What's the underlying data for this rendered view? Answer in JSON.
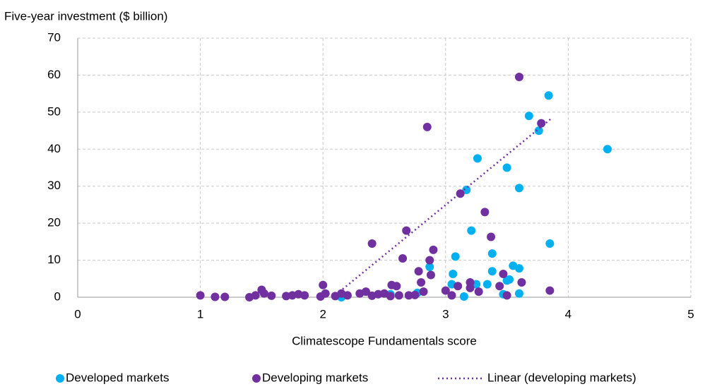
{
  "chart_data": {
    "type": "scatter",
    "y_label": "Five-year investment ($ billion)",
    "x_label": "Climatescope Fundamentals score",
    "xlim": [
      0,
      5
    ],
    "xticks": [
      0,
      1,
      2,
      3,
      4,
      5
    ],
    "ylim": [
      0,
      70
    ],
    "yticks": [
      0,
      10,
      20,
      30,
      40,
      50,
      60,
      70
    ],
    "grid": true,
    "legend": "bottom",
    "series": [
      {
        "name": "Developed markets",
        "color": "#00b0f0",
        "x": [
          3.84,
          3.68,
          3.76,
          4.32,
          3.26,
          3.5,
          3.6,
          3.17,
          3.21,
          3.85,
          3.38,
          3.08,
          3.06,
          3.38,
          3.55,
          3.6,
          2.87,
          3.05,
          3.25,
          3.34,
          3.5,
          3.52,
          3.15,
          3.47,
          3.6,
          2.15,
          2.77,
          2.55
        ],
        "values": [
          54.5,
          49,
          45,
          40,
          37.5,
          35,
          29.5,
          29,
          18,
          14.5,
          11.8,
          11,
          6.3,
          7,
          8.5,
          7.8,
          8.2,
          3.5,
          3.5,
          3.5,
          4.5,
          4.8,
          0.2,
          0.8,
          1,
          0,
          1.2,
          0.8
        ]
      },
      {
        "name": "Developing markets",
        "color": "#7030a0",
        "x": [
          3.6,
          3.78,
          2.85,
          3.12,
          3.32,
          2.68,
          3.37,
          2.4,
          2.9,
          2.65,
          2.87,
          2.78,
          2.88,
          3.47,
          2.8,
          3.2,
          3.62,
          3.44,
          3.1,
          3.27,
          3.2,
          3.0,
          3.05,
          3.5,
          3.85,
          2.82,
          2.56,
          2.6,
          2.5,
          2.45,
          2.35,
          2.3,
          2.2,
          2.15,
          2.1,
          2.0,
          2.02,
          1.98,
          1.85,
          1.8,
          1.75,
          1.7,
          1.58,
          1.52,
          1.5,
          1.45,
          1.4,
          1.2,
          1.12,
          1.0,
          2.62,
          2.7,
          2.75,
          2.55,
          2.4
        ],
        "values": [
          59.5,
          47,
          46,
          28,
          23,
          18,
          16.3,
          14.5,
          12.8,
          10.5,
          10,
          7,
          6,
          6.3,
          4,
          4,
          4,
          3,
          3,
          1.5,
          2.5,
          1.8,
          0.5,
          0.5,
          1.8,
          1.5,
          3.3,
          3,
          1,
          0.8,
          1.5,
          1,
          0.5,
          1,
          0.3,
          3.3,
          1,
          0.2,
          0.5,
          0.8,
          0.5,
          0.3,
          0.4,
          1,
          2,
          0.5,
          0,
          0.1,
          0.1,
          0.5,
          0.5,
          0.5,
          0.6,
          0.3,
          0.4
        ]
      }
    ],
    "trendline": {
      "name": "Linear (developing markets)",
      "color": "#7030a0",
      "x": [
        2.08,
        3.87
      ],
      "values": [
        0,
        48.5
      ]
    }
  }
}
